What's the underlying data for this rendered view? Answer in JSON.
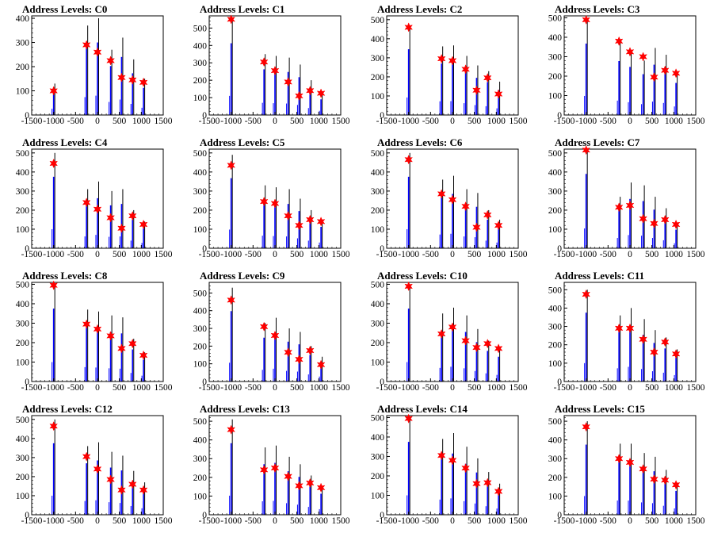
{
  "chart_data": [
    {
      "type": "histogram",
      "title": "Address Levels: C0",
      "ylim": [
        0,
        410
      ],
      "xlim": [
        -1500,
        1500
      ],
      "xticks": [
        "-1500",
        "-1000",
        "-500",
        "0",
        "500",
        "1000",
        "1500"
      ],
      "yticks": [
        "0",
        "100",
        "200",
        "300",
        "400"
      ],
      "markers": [
        [
          -1000,
          100
        ],
        [
          -250,
          290
        ],
        [
          0,
          260
        ],
        [
          300,
          225
        ],
        [
          550,
          155
        ],
        [
          800,
          145
        ],
        [
          1050,
          135
        ]
      ],
      "bars": [
        [
          -1000,
          130
        ],
        [
          -250,
          370
        ],
        [
          0,
          400
        ],
        [
          300,
          270
        ],
        [
          550,
          320
        ],
        [
          800,
          230
        ],
        [
          1050,
          150
        ]
      ]
    },
    {
      "type": "histogram",
      "title": "Address Levels: C1",
      "ylim": [
        0,
        570
      ],
      "xlim": [
        -1500,
        1500
      ],
      "xticks": [
        "-1500",
        "-1000",
        "-500",
        "0",
        "500",
        "1000",
        "1500"
      ],
      "yticks": [
        "0",
        "100",
        "200",
        "300",
        "400",
        "500"
      ],
      "markers": [
        [
          -1000,
          550
        ],
        [
          -250,
          305
        ],
        [
          0,
          255
        ],
        [
          300,
          190
        ],
        [
          550,
          110
        ],
        [
          800,
          140
        ],
        [
          1050,
          125
        ]
      ],
      "bars": [
        [
          -1000,
          550
        ],
        [
          -250,
          350
        ],
        [
          0,
          340
        ],
        [
          300,
          330
        ],
        [
          550,
          290
        ],
        [
          800,
          200
        ],
        [
          1050,
          120
        ]
      ]
    },
    {
      "type": "histogram",
      "title": "Address Levels: C2",
      "ylim": [
        0,
        520
      ],
      "xlim": [
        -1500,
        1500
      ],
      "xticks": [
        "-1500",
        "-1000",
        "-500",
        "0",
        "500",
        "1000",
        "1500"
      ],
      "yticks": [
        "0",
        "100",
        "200",
        "300",
        "400",
        "500"
      ],
      "markers": [
        [
          -1000,
          460
        ],
        [
          -250,
          295
        ],
        [
          0,
          285
        ],
        [
          300,
          240
        ],
        [
          550,
          130
        ],
        [
          800,
          195
        ],
        [
          1050,
          110
        ]
      ],
      "bars": [
        [
          -1000,
          460
        ],
        [
          -250,
          360
        ],
        [
          0,
          365
        ],
        [
          300,
          310
        ],
        [
          550,
          260
        ],
        [
          800,
          230
        ],
        [
          1050,
          175
        ]
      ]
    },
    {
      "type": "histogram",
      "title": "Address Levels: C3",
      "ylim": [
        0,
        510
      ],
      "xlim": [
        -1500,
        1500
      ],
      "xticks": [
        "-1500",
        "-1000",
        "-500",
        "0",
        "500",
        "1000",
        "1500"
      ],
      "yticks": [
        "0",
        "100",
        "200",
        "300",
        "400",
        "500"
      ],
      "markers": [
        [
          -1000,
          490
        ],
        [
          -250,
          380
        ],
        [
          0,
          325
        ],
        [
          300,
          300
        ],
        [
          550,
          195
        ],
        [
          800,
          230
        ],
        [
          1050,
          215
        ]
      ],
      "bars": [
        [
          -1000,
          490
        ],
        [
          -250,
          370
        ],
        [
          0,
          330
        ],
        [
          300,
          280
        ],
        [
          550,
          345
        ],
        [
          800,
          310
        ],
        [
          1050,
          220
        ]
      ]
    },
    {
      "type": "histogram",
      "title": "Address Levels: C4",
      "ylim": [
        0,
        520
      ],
      "xlim": [
        -1500,
        1500
      ],
      "xticks": [
        "-1500",
        "-1000",
        "-500",
        "0",
        "500",
        "1000",
        "1500"
      ],
      "yticks": [
        "0",
        "100",
        "200",
        "300",
        "400",
        "500"
      ],
      "markers": [
        [
          -1000,
          445
        ],
        [
          -250,
          240
        ],
        [
          0,
          205
        ],
        [
          300,
          160
        ],
        [
          550,
          105
        ],
        [
          800,
          170
        ],
        [
          1050,
          125
        ]
      ],
      "bars": [
        [
          -1000,
          500
        ],
        [
          -250,
          310
        ],
        [
          0,
          350
        ],
        [
          300,
          300
        ],
        [
          550,
          310
        ],
        [
          800,
          200
        ],
        [
          1050,
          140
        ]
      ]
    },
    {
      "type": "histogram",
      "title": "Address Levels: C5",
      "ylim": [
        0,
        520
      ],
      "xlim": [
        -1500,
        1500
      ],
      "xticks": [
        "-1500",
        "-1000",
        "-500",
        "0",
        "500",
        "1000",
        "1500"
      ],
      "yticks": [
        "0",
        "100",
        "200",
        "300",
        "400",
        "500"
      ],
      "markers": [
        [
          -1000,
          435
        ],
        [
          -250,
          245
        ],
        [
          0,
          235
        ],
        [
          300,
          170
        ],
        [
          550,
          120
        ],
        [
          800,
          150
        ],
        [
          1050,
          140
        ]
      ],
      "bars": [
        [
          -1000,
          490
        ],
        [
          -250,
          330
        ],
        [
          0,
          320
        ],
        [
          300,
          310
        ],
        [
          550,
          260
        ],
        [
          800,
          200
        ],
        [
          1050,
          150
        ]
      ]
    },
    {
      "type": "histogram",
      "title": "Address Levels: C6",
      "ylim": [
        0,
        520
      ],
      "xlim": [
        -1500,
        1500
      ],
      "xticks": [
        "-1500",
        "-1000",
        "-500",
        "0",
        "500",
        "1000",
        "1500"
      ],
      "yticks": [
        "0",
        "100",
        "200",
        "300",
        "400",
        "500"
      ],
      "markers": [
        [
          -1000,
          465
        ],
        [
          -250,
          285
        ],
        [
          0,
          255
        ],
        [
          300,
          220
        ],
        [
          550,
          110
        ],
        [
          800,
          175
        ],
        [
          1050,
          120
        ]
      ],
      "bars": [
        [
          -1000,
          500
        ],
        [
          -250,
          360
        ],
        [
          0,
          380
        ],
        [
          300,
          310
        ],
        [
          550,
          290
        ],
        [
          800,
          200
        ],
        [
          1050,
          150
        ]
      ]
    },
    {
      "type": "histogram",
      "title": "Address Levels: C7",
      "ylim": [
        0,
        520
      ],
      "xlim": [
        -1500,
        1500
      ],
      "xticks": [
        "-1500",
        "-1000",
        "-500",
        "0",
        "500",
        "1000",
        "1500"
      ],
      "yticks": [
        "0",
        "100",
        "200",
        "300",
        "400",
        "500"
      ],
      "markers": [
        [
          -1000,
          515
        ],
        [
          -250,
          215
        ],
        [
          0,
          225
        ],
        [
          300,
          155
        ],
        [
          550,
          130
        ],
        [
          800,
          150
        ],
        [
          1050,
          125
        ]
      ],
      "bars": [
        [
          -1000,
          520
        ],
        [
          -250,
          270
        ],
        [
          0,
          345
        ],
        [
          300,
          330
        ],
        [
          550,
          270
        ],
        [
          800,
          210
        ],
        [
          1050,
          130
        ]
      ]
    },
    {
      "type": "histogram",
      "title": "Address Levels: C8",
      "ylim": [
        0,
        510
      ],
      "xlim": [
        -1500,
        1500
      ],
      "xticks": [
        "-1500",
        "-1000",
        "-500",
        "0",
        "500",
        "1000",
        "1500"
      ],
      "yticks": [
        "0",
        "100",
        "200",
        "300",
        "400",
        "500"
      ],
      "markers": [
        [
          -1000,
          495
        ],
        [
          -250,
          295
        ],
        [
          0,
          270
        ],
        [
          300,
          235
        ],
        [
          550,
          170
        ],
        [
          800,
          195
        ],
        [
          1050,
          135
        ]
      ],
      "bars": [
        [
          -1000,
          500
        ],
        [
          -250,
          370
        ],
        [
          0,
          360
        ],
        [
          300,
          340
        ],
        [
          550,
          330
        ],
        [
          800,
          220
        ],
        [
          1050,
          150
        ]
      ]
    },
    {
      "type": "histogram",
      "title": "Address Levels: C9",
      "ylim": [
        0,
        560
      ],
      "xlim": [
        -1500,
        1500
      ],
      "xticks": [
        "-1500",
        "-1000",
        "-500",
        "0",
        "500",
        "1000",
        "1500"
      ],
      "yticks": [
        "0",
        "100",
        "200",
        "300",
        "400",
        "500"
      ],
      "markers": [
        [
          -1000,
          460
        ],
        [
          -250,
          310
        ],
        [
          0,
          260
        ],
        [
          300,
          165
        ],
        [
          550,
          125
        ],
        [
          800,
          175
        ],
        [
          1050,
          95
        ]
      ],
      "bars": [
        [
          -1000,
          530
        ],
        [
          -250,
          330
        ],
        [
          0,
          360
        ],
        [
          300,
          300
        ],
        [
          550,
          280
        ],
        [
          800,
          200
        ],
        [
          1050,
          140
        ]
      ]
    },
    {
      "type": "histogram",
      "title": "Address Levels: C10",
      "ylim": [
        0,
        510
      ],
      "xlim": [
        -1500,
        1500
      ],
      "xticks": [
        "-1500",
        "-1000",
        "-500",
        "0",
        "500",
        "1000",
        "1500"
      ],
      "yticks": [
        "0",
        "100",
        "200",
        "300",
        "400",
        "500"
      ],
      "markers": [
        [
          -1000,
          490
        ],
        [
          -250,
          245
        ],
        [
          0,
          280
        ],
        [
          300,
          210
        ],
        [
          550,
          175
        ],
        [
          800,
          195
        ],
        [
          1050,
          170
        ]
      ],
      "bars": [
        [
          -1000,
          500
        ],
        [
          -250,
          350
        ],
        [
          0,
          380
        ],
        [
          300,
          340
        ],
        [
          550,
          270
        ],
        [
          800,
          210
        ],
        [
          1050,
          170
        ]
      ]
    },
    {
      "type": "histogram",
      "title": "Address Levels: C11",
      "ylim": [
        0,
        540
      ],
      "xlim": [
        -1500,
        1500
      ],
      "xticks": [
        "-1500",
        "-1000",
        "-500",
        "0",
        "500",
        "1000",
        "1500"
      ],
      "yticks": [
        "0",
        "100",
        "200",
        "300",
        "400",
        "500"
      ],
      "markers": [
        [
          -1000,
          475
        ],
        [
          -250,
          290
        ],
        [
          0,
          290
        ],
        [
          300,
          230
        ],
        [
          550,
          160
        ],
        [
          800,
          215
        ],
        [
          1050,
          150
        ]
      ],
      "bars": [
        [
          -1000,
          500
        ],
        [
          -250,
          360
        ],
        [
          0,
          400
        ],
        [
          300,
          340
        ],
        [
          550,
          280
        ],
        [
          800,
          240
        ],
        [
          1050,
          175
        ]
      ]
    },
    {
      "type": "histogram",
      "title": "Address Levels: C12",
      "ylim": [
        0,
        520
      ],
      "xlim": [
        -1500,
        1500
      ],
      "xticks": [
        "-1500",
        "-1000",
        "-500",
        "0",
        "500",
        "1000",
        "1500"
      ],
      "yticks": [
        "0",
        "100",
        "200",
        "300",
        "400",
        "500"
      ],
      "markers": [
        [
          -1000,
          465
        ],
        [
          -250,
          305
        ],
        [
          0,
          240
        ],
        [
          300,
          185
        ],
        [
          550,
          130
        ],
        [
          800,
          160
        ],
        [
          1050,
          130
        ]
      ],
      "bars": [
        [
          -1000,
          500
        ],
        [
          -250,
          360
        ],
        [
          0,
          380
        ],
        [
          300,
          330
        ],
        [
          550,
          310
        ],
        [
          800,
          230
        ],
        [
          1050,
          170
        ]
      ]
    },
    {
      "type": "histogram",
      "title": "Address Levels: C13",
      "ylim": [
        0,
        530
      ],
      "xlim": [
        -1500,
        1500
      ],
      "xticks": [
        "-1500",
        "-1000",
        "-500",
        "0",
        "500",
        "1000",
        "1500"
      ],
      "yticks": [
        "0",
        "100",
        "200",
        "300",
        "400",
        "500"
      ],
      "markers": [
        [
          -1000,
          455
        ],
        [
          -250,
          240
        ],
        [
          0,
          250
        ],
        [
          300,
          205
        ],
        [
          550,
          155
        ],
        [
          800,
          170
        ],
        [
          1050,
          145
        ]
      ],
      "bars": [
        [
          -1000,
          510
        ],
        [
          -250,
          360
        ],
        [
          0,
          370
        ],
        [
          300,
          310
        ],
        [
          550,
          270
        ],
        [
          800,
          210
        ],
        [
          1050,
          150
        ]
      ]
    },
    {
      "type": "histogram",
      "title": "Address Levels: C14",
      "ylim": [
        0,
        510
      ],
      "xlim": [
        -1500,
        1500
      ],
      "xticks": [
        "-1500",
        "-1000",
        "-500",
        "0",
        "500",
        "1000",
        "1500"
      ],
      "yticks": [
        "0",
        "100",
        "200",
        "300",
        "400",
        "500"
      ],
      "markers": [
        [
          -1000,
          495
        ],
        [
          -250,
          305
        ],
        [
          0,
          280
        ],
        [
          300,
          240
        ],
        [
          550,
          160
        ],
        [
          800,
          165
        ],
        [
          1050,
          120
        ]
      ],
      "bars": [
        [
          -1000,
          500
        ],
        [
          -250,
          390
        ],
        [
          0,
          420
        ],
        [
          300,
          350
        ],
        [
          550,
          290
        ],
        [
          800,
          220
        ],
        [
          1050,
          160
        ]
      ]
    },
    {
      "type": "histogram",
      "title": "Address Levels: C15",
      "ylim": [
        0,
        530
      ],
      "xlim": [
        -1500,
        1500
      ],
      "xticks": [
        "-1500",
        "-1000",
        "-500",
        "0",
        "500",
        "1000",
        "1500"
      ],
      "yticks": [
        "0",
        "100",
        "200",
        "300",
        "400",
        "500"
      ],
      "markers": [
        [
          -1000,
          470
        ],
        [
          -250,
          300
        ],
        [
          0,
          280
        ],
        [
          300,
          245
        ],
        [
          550,
          190
        ],
        [
          800,
          185
        ],
        [
          1050,
          160
        ]
      ],
      "bars": [
        [
          -1000,
          500
        ],
        [
          -250,
          380
        ],
        [
          0,
          380
        ],
        [
          300,
          330
        ],
        [
          550,
          310
        ],
        [
          800,
          240
        ],
        [
          1050,
          170
        ]
      ]
    }
  ]
}
